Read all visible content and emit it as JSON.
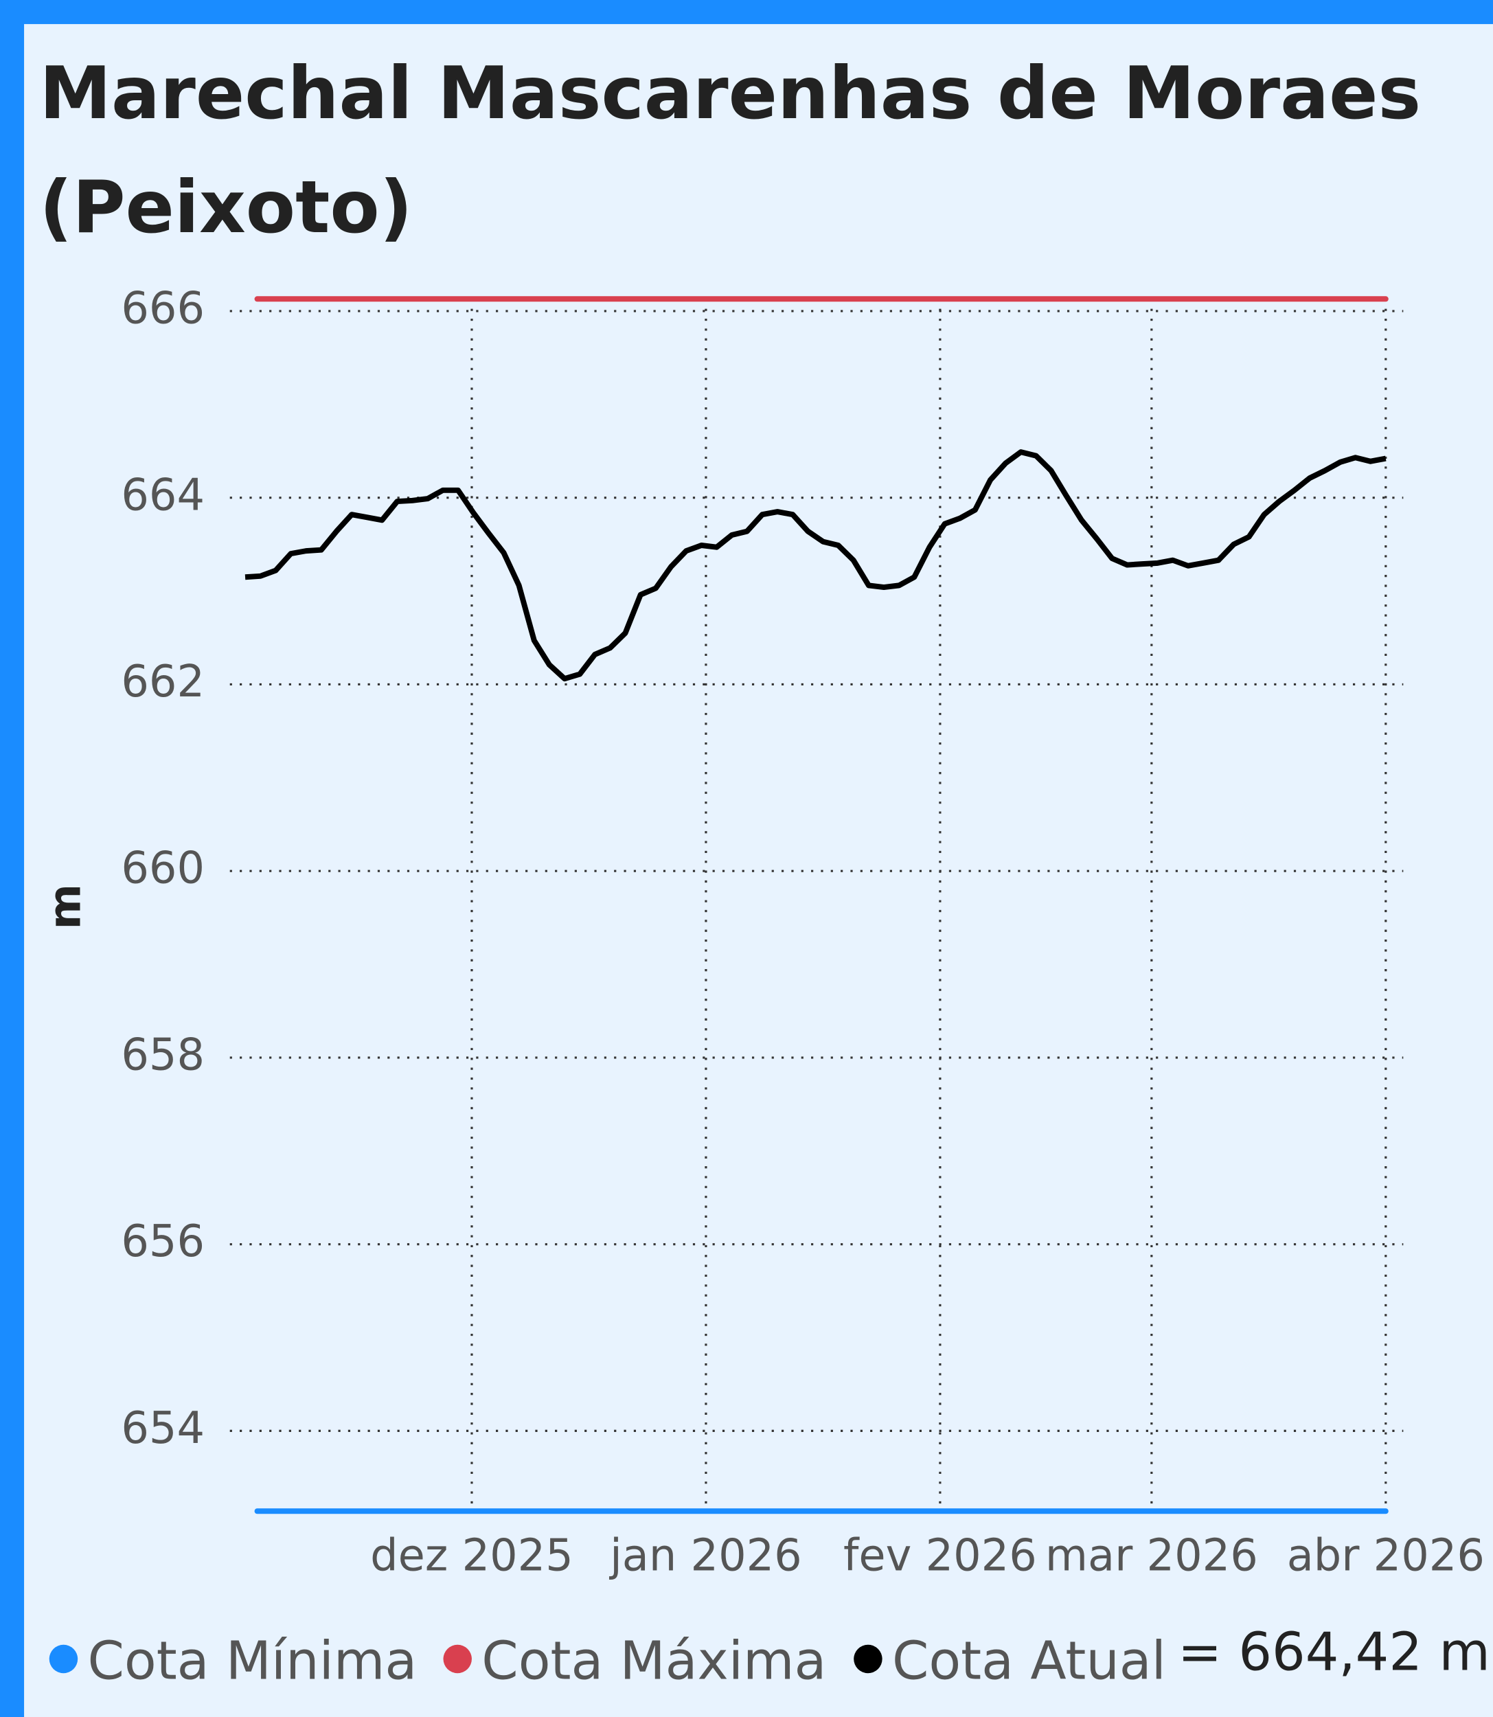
{
  "chart_data": {
    "type": "line",
    "title": "Marechal Mascarenhas de Moraes (Peixoto)",
    "y_label": "m",
    "xlim": [
      "2025-11",
      "2026-04"
    ],
    "xticks": [
      {
        "value": "2025-12",
        "label": "dez 2025"
      },
      {
        "value": "2026-01",
        "label": "jan 2026"
      },
      {
        "value": "2026-02",
        "label": "fev 2026"
      },
      {
        "value": "2026-03",
        "label": "mar 2026"
      },
      {
        "value": "2026-04",
        "label": "abr 2026"
      }
    ],
    "ylim": [
      653.14,
      666.13
    ],
    "yticks": [
      654,
      656,
      658,
      660,
      662,
      664,
      666
    ],
    "grid": true,
    "series": [
      {
        "name": "Cota Mínima",
        "color": "#1a8cff",
        "value": 653.14
      },
      {
        "name": "Cota Máxima",
        "color": "#d9404f",
        "value": 666.13
      },
      {
        "name": "Cota Atual",
        "color": "#000000",
        "label": "= 664,42 m",
        "values": [
          663.15,
          663.16,
          663.22,
          663.4,
          663.43,
          663.44,
          663.64,
          663.82,
          663.79,
          663.76,
          663.96,
          663.97,
          663.99,
          664.08,
          664.08,
          663.84,
          663.62,
          663.41,
          663.06,
          662.47,
          662.21,
          662.06,
          662.11,
          662.32,
          662.39,
          662.55,
          662.96,
          663.03,
          663.26,
          663.43,
          663.49,
          663.47,
          663.6,
          663.64,
          663.82,
          663.85,
          663.82,
          663.64,
          663.53,
          663.49,
          663.33,
          663.06,
          663.04,
          663.06,
          663.15,
          663.47,
          663.72,
          663.78,
          663.87,
          664.19,
          664.37,
          664.49,
          664.45,
          664.29,
          664.02,
          663.76,
          663.56,
          663.35,
          663.28,
          663.29,
          663.3,
          663.33,
          663.27,
          663.3,
          663.33,
          663.5,
          663.58,
          663.82,
          663.96,
          664.08,
          664.21,
          664.29,
          664.38,
          664.43,
          664.39,
          664.42
        ]
      }
    ]
  }
}
